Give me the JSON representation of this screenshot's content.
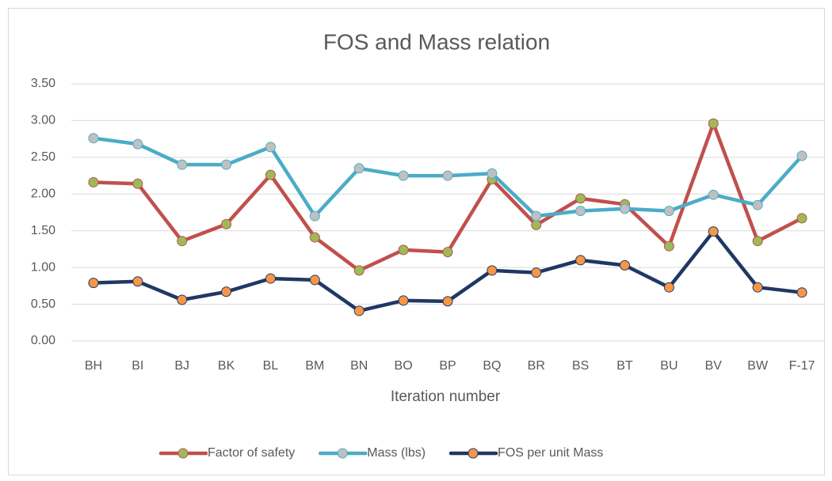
{
  "chart_data": {
    "type": "line",
    "title": "FOS and Mass relation",
    "x_label": "Iteration number",
    "categories": [
      "BH",
      "BI",
      "BJ",
      "BK",
      "BL",
      "BM",
      "BN",
      "BO",
      "BP",
      "BQ",
      "BR",
      "BS",
      "BT",
      "BU",
      "BV",
      "BW",
      "F-17"
    ],
    "series": [
      {
        "name": "Factor of safety",
        "color": "#c0504d",
        "marker_color": "#9bbb59",
        "values": [
          2.16,
          2.14,
          1.36,
          1.59,
          2.26,
          1.41,
          0.96,
          1.24,
          1.21,
          2.2,
          1.58,
          1.94,
          1.86,
          1.29,
          2.96,
          1.36,
          1.67
        ]
      },
      {
        "name": "Mass (lbs)",
        "color": "#4bacc6",
        "marker_color": "#c0c0c0",
        "values": [
          2.76,
          2.68,
          2.4,
          2.4,
          2.64,
          1.7,
          2.35,
          2.25,
          2.25,
          2.28,
          1.7,
          1.77,
          1.8,
          1.77,
          1.99,
          1.85,
          2.52
        ]
      },
      {
        "name": "FOS per unit Mass",
        "color": "#1f3864",
        "marker_color": "#f79646",
        "values": [
          0.79,
          0.81,
          0.56,
          0.67,
          0.85,
          0.83,
          0.41,
          0.55,
          0.54,
          0.96,
          0.93,
          1.1,
          1.03,
          0.73,
          1.49,
          0.73,
          0.66
        ]
      }
    ],
    "ylim": [
      0,
      3.5
    ],
    "yticks": [
      {
        "value": 0,
        "label": "0.00"
      },
      {
        "value": 0.5,
        "label": "0.50"
      },
      {
        "value": 1,
        "label": "1.00"
      },
      {
        "value": 1.5,
        "label": "1.50"
      },
      {
        "value": 2,
        "label": "2.00"
      },
      {
        "value": 2.5,
        "label": "2.50"
      },
      {
        "value": 3,
        "label": "3.00"
      },
      {
        "value": 3.5,
        "label": "3.50"
      }
    ],
    "grid": true,
    "legend": "bottom"
  }
}
